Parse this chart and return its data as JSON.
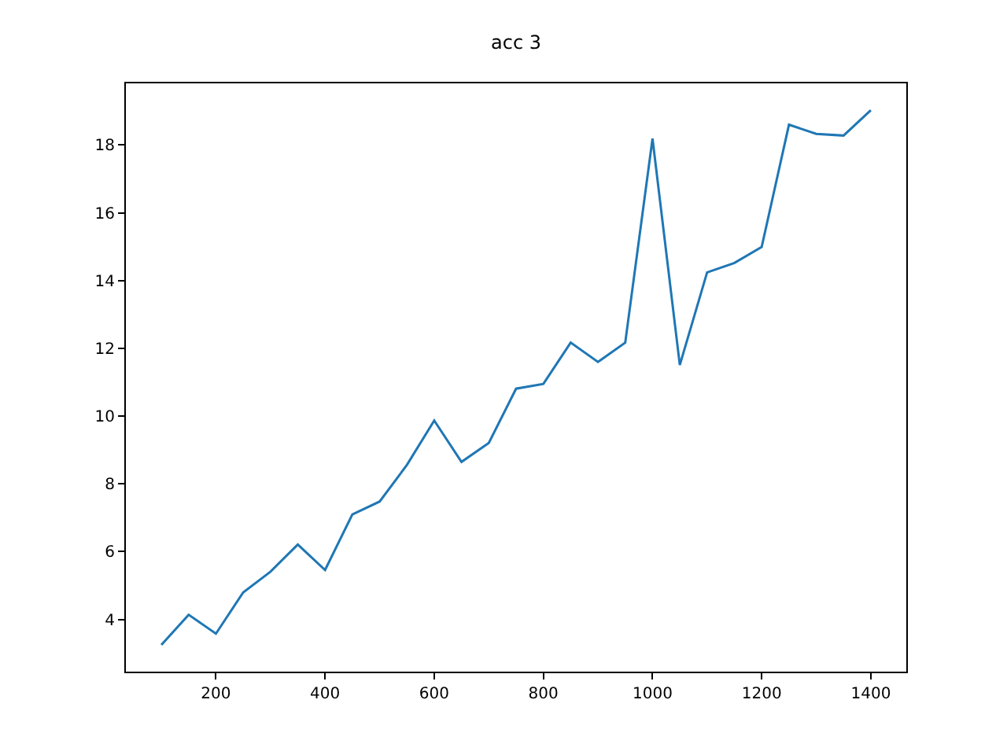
{
  "chart_data": {
    "type": "line",
    "title": "acc 3",
    "x": [
      100,
      150,
      200,
      250,
      300,
      350,
      400,
      450,
      500,
      550,
      600,
      650,
      700,
      750,
      800,
      850,
      900,
      950,
      1000,
      1050,
      1100,
      1150,
      1200,
      1250,
      1300,
      1350,
      1400
    ],
    "series": [
      {
        "color": "#1f77b4",
        "values": [
          3.25,
          4.14,
          3.58,
          4.8,
          5.41,
          6.21,
          5.46,
          7.1,
          7.48,
          8.56,
          9.87,
          8.65,
          9.21,
          10.81,
          10.95,
          12.17,
          11.6,
          12.17,
          18.19,
          11.51,
          14.24,
          14.52,
          14.99,
          18.6,
          18.33,
          18.28,
          19.03
        ]
      }
    ],
    "xlim": [
      35,
      1465
    ],
    "ylim": [
      2.46,
      19.82
    ],
    "xticks": [
      200,
      400,
      600,
      800,
      1000,
      1200,
      1400
    ],
    "yticks": [
      4,
      6,
      8,
      10,
      12,
      14,
      16,
      18
    ],
    "grid": false,
    "legend": false,
    "line_style": "solid",
    "marker": "none"
  }
}
